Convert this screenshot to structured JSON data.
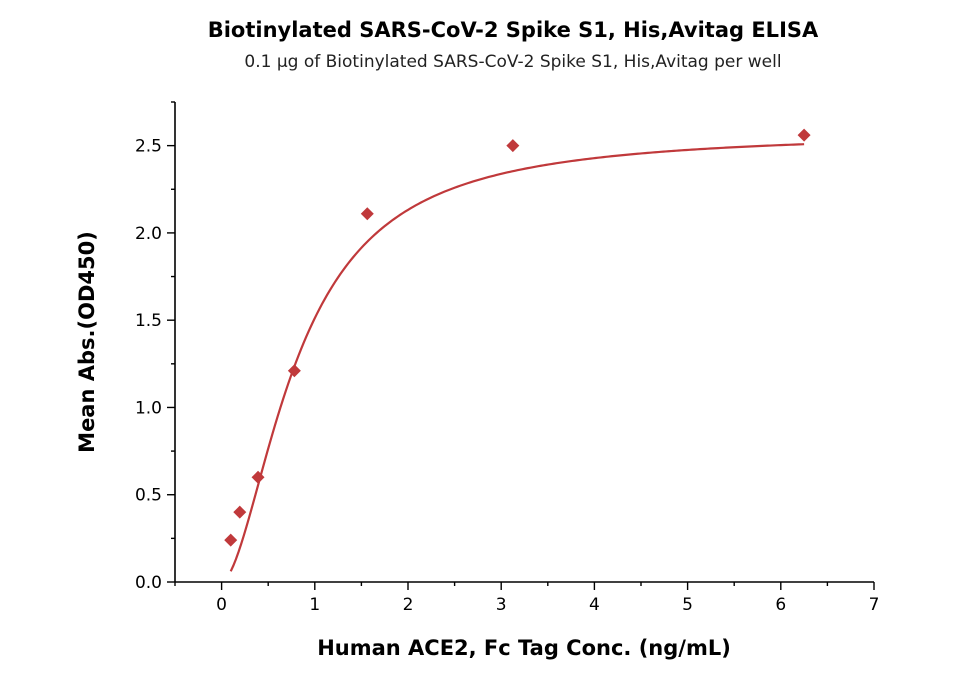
{
  "chart_data": {
    "type": "scatter",
    "title": "Biotinylated SARS-CoV-2 Spike S1, His,Avitag ELISA",
    "subtitle": "0.1 μg of Biotinylated SARS-CoV-2 Spike S1, His,Avitag per well",
    "xlabel": "Human ACE2, Fc Tag Conc. (ng/mL)",
    "ylabel": "Mean Abs.(OD450)",
    "xlim": [
      -0.5,
      7
    ],
    "ylim": [
      0,
      2.75
    ],
    "x_ticks": [
      0,
      1,
      2,
      3,
      4,
      5,
      6,
      7
    ],
    "x_tick_labels": [
      "0",
      "1",
      "2",
      "3",
      "4",
      "5",
      "6",
      "7"
    ],
    "y_ticks": [
      0.0,
      0.5,
      1.0,
      1.5,
      2.0,
      2.5
    ],
    "y_tick_labels": [
      "0.0",
      "0.5",
      "1.0",
      "1.5",
      "2.0",
      "2.5"
    ],
    "grid": false,
    "series": [
      {
        "marker": "diamond",
        "color": "#c0393b",
        "x": [
          0.098,
          0.195,
          0.391,
          0.781,
          1.563,
          3.125,
          6.25
        ],
        "y": [
          0.24,
          0.4,
          0.6,
          1.21,
          2.11,
          2.5,
          2.56
        ]
      }
    ],
    "fit_curve": {
      "model": "4PL",
      "color": "#c0393b",
      "bottom": 0.0,
      "top": 2.58,
      "ec50": 0.82,
      "hill": 1.75
    }
  }
}
